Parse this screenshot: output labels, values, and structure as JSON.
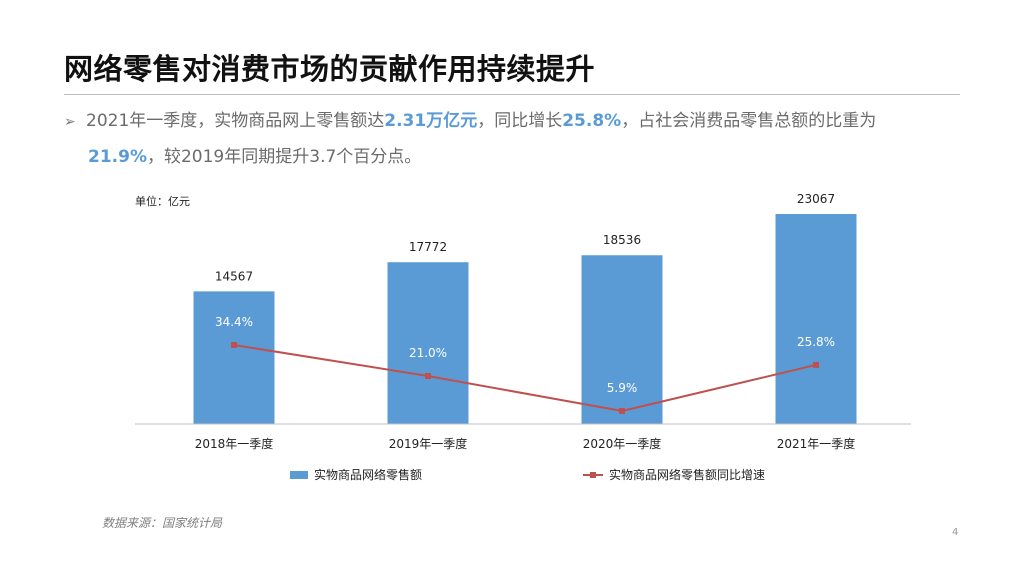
{
  "slide": {
    "title": "网络零售对消费市场的贡献作用持续提升",
    "bullet": {
      "t1": "2021年一季度，实物商品网上零售额达",
      "h1": "2.31万亿元",
      "t2": "，同比增长",
      "h2": "25.8%",
      "t3": "，占社会消费品零售总额的比重为",
      "h3": "21.9%",
      "t4": "，较2019年同期提升3.7个百分点。"
    },
    "source": "数据来源：国家统计局",
    "page_number": "4"
  },
  "colors": {
    "bar": "#5b9bd5",
    "line": "#c0504d",
    "highlight": "#5b9bd5"
  },
  "chart_data": {
    "type": "bar",
    "unit_label": "单位：亿元",
    "categories": [
      "2018年一季度",
      "2019年一季度",
      "2020年一季度",
      "2021年一季度"
    ],
    "series": [
      {
        "name": "实物商品网络零售额",
        "type": "bar",
        "values": [
          14567,
          17772,
          18536,
          23067
        ]
      },
      {
        "name": "实物商品网络零售额同比增速",
        "type": "line",
        "values": [
          34.4,
          21.0,
          5.9,
          25.8
        ],
        "labels": [
          "34.4%",
          "21.0%",
          "5.9%",
          "25.8%"
        ]
      }
    ],
    "legend_position": "bottom",
    "grid": false
  }
}
